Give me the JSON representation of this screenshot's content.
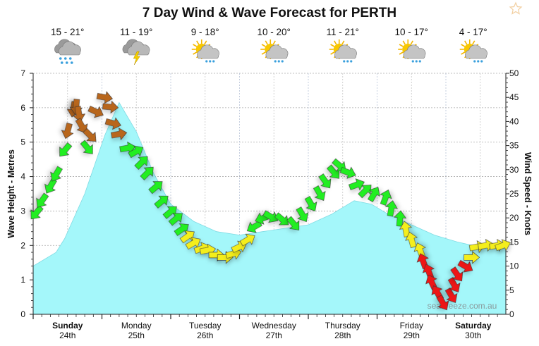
{
  "chart_data": {
    "type": "area",
    "title": "7 Day Wind & Wave Forecast for PERTH",
    "ylabel": "Wave Height - Metres",
    "y2label": "Wind Speed - Knots",
    "ylim": [
      0,
      7
    ],
    "y2lim": [
      0,
      50
    ],
    "yticks": [
      "0",
      "1",
      "2",
      "3",
      "4",
      "5",
      "6",
      "7"
    ],
    "y2ticks": [
      "0",
      "5",
      "10",
      "15",
      "20",
      "25",
      "30",
      "35",
      "40",
      "45",
      "50"
    ],
    "grid": true,
    "watermark": "seabreeze.com.au",
    "days": [
      {
        "name": "Sunday",
        "date": "24th",
        "bold": true,
        "temp": "15 - 21°",
        "weather": "heavy-rain-icon"
      },
      {
        "name": "Monday",
        "date": "25th",
        "bold": false,
        "temp": "11 - 19°",
        "weather": "thunderstorm-icon"
      },
      {
        "name": "Tuesday",
        "date": "26th",
        "bold": false,
        "temp": "9 - 18°",
        "weather": "sun-cloud-showers-icon"
      },
      {
        "name": "Wednesday",
        "date": "27th",
        "bold": false,
        "temp": "10 - 20°",
        "weather": "sun-cloud-showers-icon"
      },
      {
        "name": "Thursday",
        "date": "28th",
        "bold": false,
        "temp": "11 - 21°",
        "weather": "sun-cloud-showers-icon"
      },
      {
        "name": "Friday",
        "date": "29th",
        "bold": false,
        "temp": "10 - 17°",
        "weather": "sun-cloud-showers-icon"
      },
      {
        "name": "Saturday",
        "date": "30th",
        "bold": true,
        "temp": "4 - 17°",
        "weather": "sun-cloud-showers-icon"
      }
    ],
    "wave_series": {
      "color": "#a4f7fa",
      "points": [
        [
          "Sun 00:00",
          1.4
        ],
        [
          "Sun 08:00",
          1.8
        ],
        [
          "Sun 11:00",
          2.2
        ],
        [
          "Sun 18:00",
          3.5
        ],
        [
          "Mon 01:00",
          5.2
        ],
        [
          "Mon 06:00",
          6.15
        ],
        [
          "Mon 12:00",
          5.3
        ],
        [
          "Mon 18:00",
          4.1
        ],
        [
          "Tue 00:00",
          3.2
        ],
        [
          "Tue 08:00",
          2.7
        ],
        [
          "Tue 16:00",
          2.4
        ],
        [
          "Wed 00:00",
          2.3
        ],
        [
          "Wed 08:00",
          2.4
        ],
        [
          "Wed 16:00",
          2.5
        ],
        [
          "Thu 00:00",
          2.6
        ],
        [
          "Thu 08:00",
          2.9
        ],
        [
          "Thu 16:00",
          3.3
        ],
        [
          "Thu 22:00",
          3.2
        ],
        [
          "Fri 04:00",
          2.9
        ],
        [
          "Fri 12:00",
          2.6
        ],
        [
          "Fri 20:00",
          2.3
        ],
        [
          "Sat 04:00",
          2.1
        ],
        [
          "Sat 12:00",
          1.95
        ],
        [
          "Sat 21:00",
          1.95
        ]
      ]
    },
    "wind_series": {
      "colors": {
        "green": "#22ee22",
        "yellow": "#f4ee1e",
        "red": "#ee1313",
        "brown": "#b8661c"
      },
      "points": [
        {
          "t": "Sun 01:00",
          "kn": 21,
          "dir": 220,
          "c": "green"
        },
        {
          "t": "Sun 03:00",
          "kn": 23.5,
          "dir": 215,
          "c": "green"
        },
        {
          "t": "Sun 06:00",
          "kn": 26.5,
          "dir": 210,
          "c": "green"
        },
        {
          "t": "Sun 08:00",
          "kn": 29,
          "dir": 210,
          "c": "green"
        },
        {
          "t": "Sun 11:00",
          "kn": 34,
          "dir": 220,
          "c": "green"
        },
        {
          "t": "Sun 12:00",
          "kn": 38,
          "dir": 195,
          "c": "brown"
        },
        {
          "t": "Sun 14:00",
          "kn": 42.5,
          "dir": 190,
          "c": "brown"
        },
        {
          "t": "Sun 15:00",
          "kn": 43,
          "dir": 185,
          "c": "brown"
        },
        {
          "t": "Sun 16:00",
          "kn": 41.5,
          "dir": 170,
          "c": "brown"
        },
        {
          "t": "Sun 17:00",
          "kn": 39,
          "dir": 150,
          "c": "brown"
        },
        {
          "t": "Sun 19:00",
          "kn": 34.5,
          "dir": 140,
          "c": "green"
        },
        {
          "t": "Sun 20:00",
          "kn": 37,
          "dir": 135,
          "c": "brown"
        },
        {
          "t": "Sun 22:00",
          "kn": 42,
          "dir": 115,
          "c": "brown"
        },
        {
          "t": "Mon 01:00",
          "kn": 45,
          "dir": 100,
          "c": "brown"
        },
        {
          "t": "Mon 03:00",
          "kn": 43,
          "dir": 95,
          "c": "brown"
        },
        {
          "t": "Mon 04:00",
          "kn": 39.6,
          "dir": 105,
          "c": "brown"
        },
        {
          "t": "Mon 06:00",
          "kn": 37.4,
          "dir": 80,
          "c": "brown"
        },
        {
          "t": "Mon 09:00",
          "kn": 34.5,
          "dir": 80,
          "c": "green"
        },
        {
          "t": "Mon 12:00",
          "kn": 33.8,
          "dir": 60,
          "c": "green"
        },
        {
          "t": "Mon 14:00",
          "kn": 31.6,
          "dir": 45,
          "c": "green"
        },
        {
          "t": "Mon 16:00",
          "kn": 29.4,
          "dir": 45,
          "c": "green"
        },
        {
          "t": "Mon 19:00",
          "kn": 26.5,
          "dir": 50,
          "c": "green"
        },
        {
          "t": "Mon 21:00",
          "kn": 23.5,
          "dir": 50,
          "c": "green"
        },
        {
          "t": "Tue 00:00",
          "kn": 21.3,
          "dir": 50,
          "c": "green"
        },
        {
          "t": "Tue 02:00",
          "kn": 19.9,
          "dir": 50,
          "c": "green"
        },
        {
          "t": "Tue 04:00",
          "kn": 17.7,
          "dir": 55,
          "c": "green"
        },
        {
          "t": "Tue 06:00",
          "kn": 16.2,
          "dir": 55,
          "c": "yellow"
        },
        {
          "t": "Tue 08:00",
          "kn": 14.8,
          "dir": 60,
          "c": "yellow"
        },
        {
          "t": "Tue 11:00",
          "kn": 13.7,
          "dir": 70,
          "c": "yellow"
        },
        {
          "t": "Tue 13:00",
          "kn": 13.3,
          "dir": 80,
          "c": "yellow"
        },
        {
          "t": "Tue 16:00",
          "kn": 12.3,
          "dir": 90,
          "c": "yellow"
        },
        {
          "t": "Tue 19:00",
          "kn": 11.8,
          "dir": 90,
          "c": "yellow"
        },
        {
          "t": "Tue 22:00",
          "kn": 12.6,
          "dir": 75,
          "c": "yellow"
        },
        {
          "t": "Wed 00:00",
          "kn": 14,
          "dir": 65,
          "c": "yellow"
        },
        {
          "t": "Wed 03:00",
          "kn": 15.5,
          "dir": 60,
          "c": "yellow"
        },
        {
          "t": "Wed 05:00",
          "kn": 18.1,
          "dir": 240,
          "c": "green"
        },
        {
          "t": "Wed 08:00",
          "kn": 19.9,
          "dir": 250,
          "c": "green"
        },
        {
          "t": "Wed 11:00",
          "kn": 20.2,
          "dir": 120,
          "c": "green"
        },
        {
          "t": "Wed 15:00",
          "kn": 19.6,
          "dir": 130,
          "c": "green"
        },
        {
          "t": "Wed 19:00",
          "kn": 18.7,
          "dir": 140,
          "c": "green"
        },
        {
          "t": "Wed 22:00",
          "kn": 20.6,
          "dir": 150,
          "c": "green"
        },
        {
          "t": "Thu 01:00",
          "kn": 22.8,
          "dir": 150,
          "c": "green"
        },
        {
          "t": "Thu 04:00",
          "kn": 25,
          "dir": 150,
          "c": "green"
        },
        {
          "t": "Thu 06:00",
          "kn": 27.5,
          "dir": 145,
          "c": "green"
        },
        {
          "t": "Thu 09:00",
          "kn": 29.4,
          "dir": 140,
          "c": "green"
        },
        {
          "t": "Thu 11:00",
          "kn": 30.8,
          "dir": 130,
          "c": "green"
        },
        {
          "t": "Thu 14:00",
          "kn": 29.4,
          "dir": 110,
          "c": "green"
        },
        {
          "t": "Thu 17:00",
          "kn": 26.9,
          "dir": 70,
          "c": "green"
        },
        {
          "t": "Thu 20:00",
          "kn": 25.7,
          "dir": 45,
          "c": "green"
        },
        {
          "t": "Thu 23:00",
          "kn": 25,
          "dir": 30,
          "c": "green"
        },
        {
          "t": "Fri 03:00",
          "kn": 24.3,
          "dir": 20,
          "c": "green"
        },
        {
          "t": "Fri 05:00",
          "kn": 22,
          "dir": 10,
          "c": "green"
        },
        {
          "t": "Fri 08:00",
          "kn": 19.9,
          "dir": 5,
          "c": "green"
        },
        {
          "t": "Fri 10:00",
          "kn": 17.7,
          "dir": 350,
          "c": "yellow"
        },
        {
          "t": "Fri 12:00",
          "kn": 15.5,
          "dir": 345,
          "c": "yellow"
        },
        {
          "t": "Fri 15:00",
          "kn": 13.3,
          "dir": 340,
          "c": "yellow"
        },
        {
          "t": "Fri 16:00",
          "kn": 11.1,
          "dir": 340,
          "c": "red"
        },
        {
          "t": "Fri 18:00",
          "kn": 8.9,
          "dir": 340,
          "c": "red"
        },
        {
          "t": "Fri 19:00",
          "kn": 6.7,
          "dir": 335,
          "c": "red"
        },
        {
          "t": "Fri 21:00",
          "kn": 4.5,
          "dir": 330,
          "c": "red"
        },
        {
          "t": "Fri 23:00",
          "kn": 2.3,
          "dir": 150,
          "c": "red"
        },
        {
          "t": "Sat 02:00",
          "kn": 3.8,
          "dir": 150,
          "c": "red"
        },
        {
          "t": "Sat 03:00",
          "kn": 6,
          "dir": 150,
          "c": "red"
        },
        {
          "t": "Sat 04:00",
          "kn": 8.2,
          "dir": 145,
          "c": "red"
        },
        {
          "t": "Sat 07:00",
          "kn": 9.9,
          "dir": 120,
          "c": "red"
        },
        {
          "t": "Sat 09:00",
          "kn": 11.8,
          "dir": 90,
          "c": "yellow"
        },
        {
          "t": "Sat 11:00",
          "kn": 14,
          "dir": 80,
          "c": "yellow"
        },
        {
          "t": "Sat 14:00",
          "kn": 14.3,
          "dir": 80,
          "c": "yellow"
        },
        {
          "t": "Sat 18:00",
          "kn": 14.3,
          "dir": 80,
          "c": "yellow"
        },
        {
          "t": "Sat 20:00",
          "kn": 14.3,
          "dir": 70,
          "c": "yellow"
        }
      ]
    }
  },
  "favourite_icon": "star-outline-icon"
}
